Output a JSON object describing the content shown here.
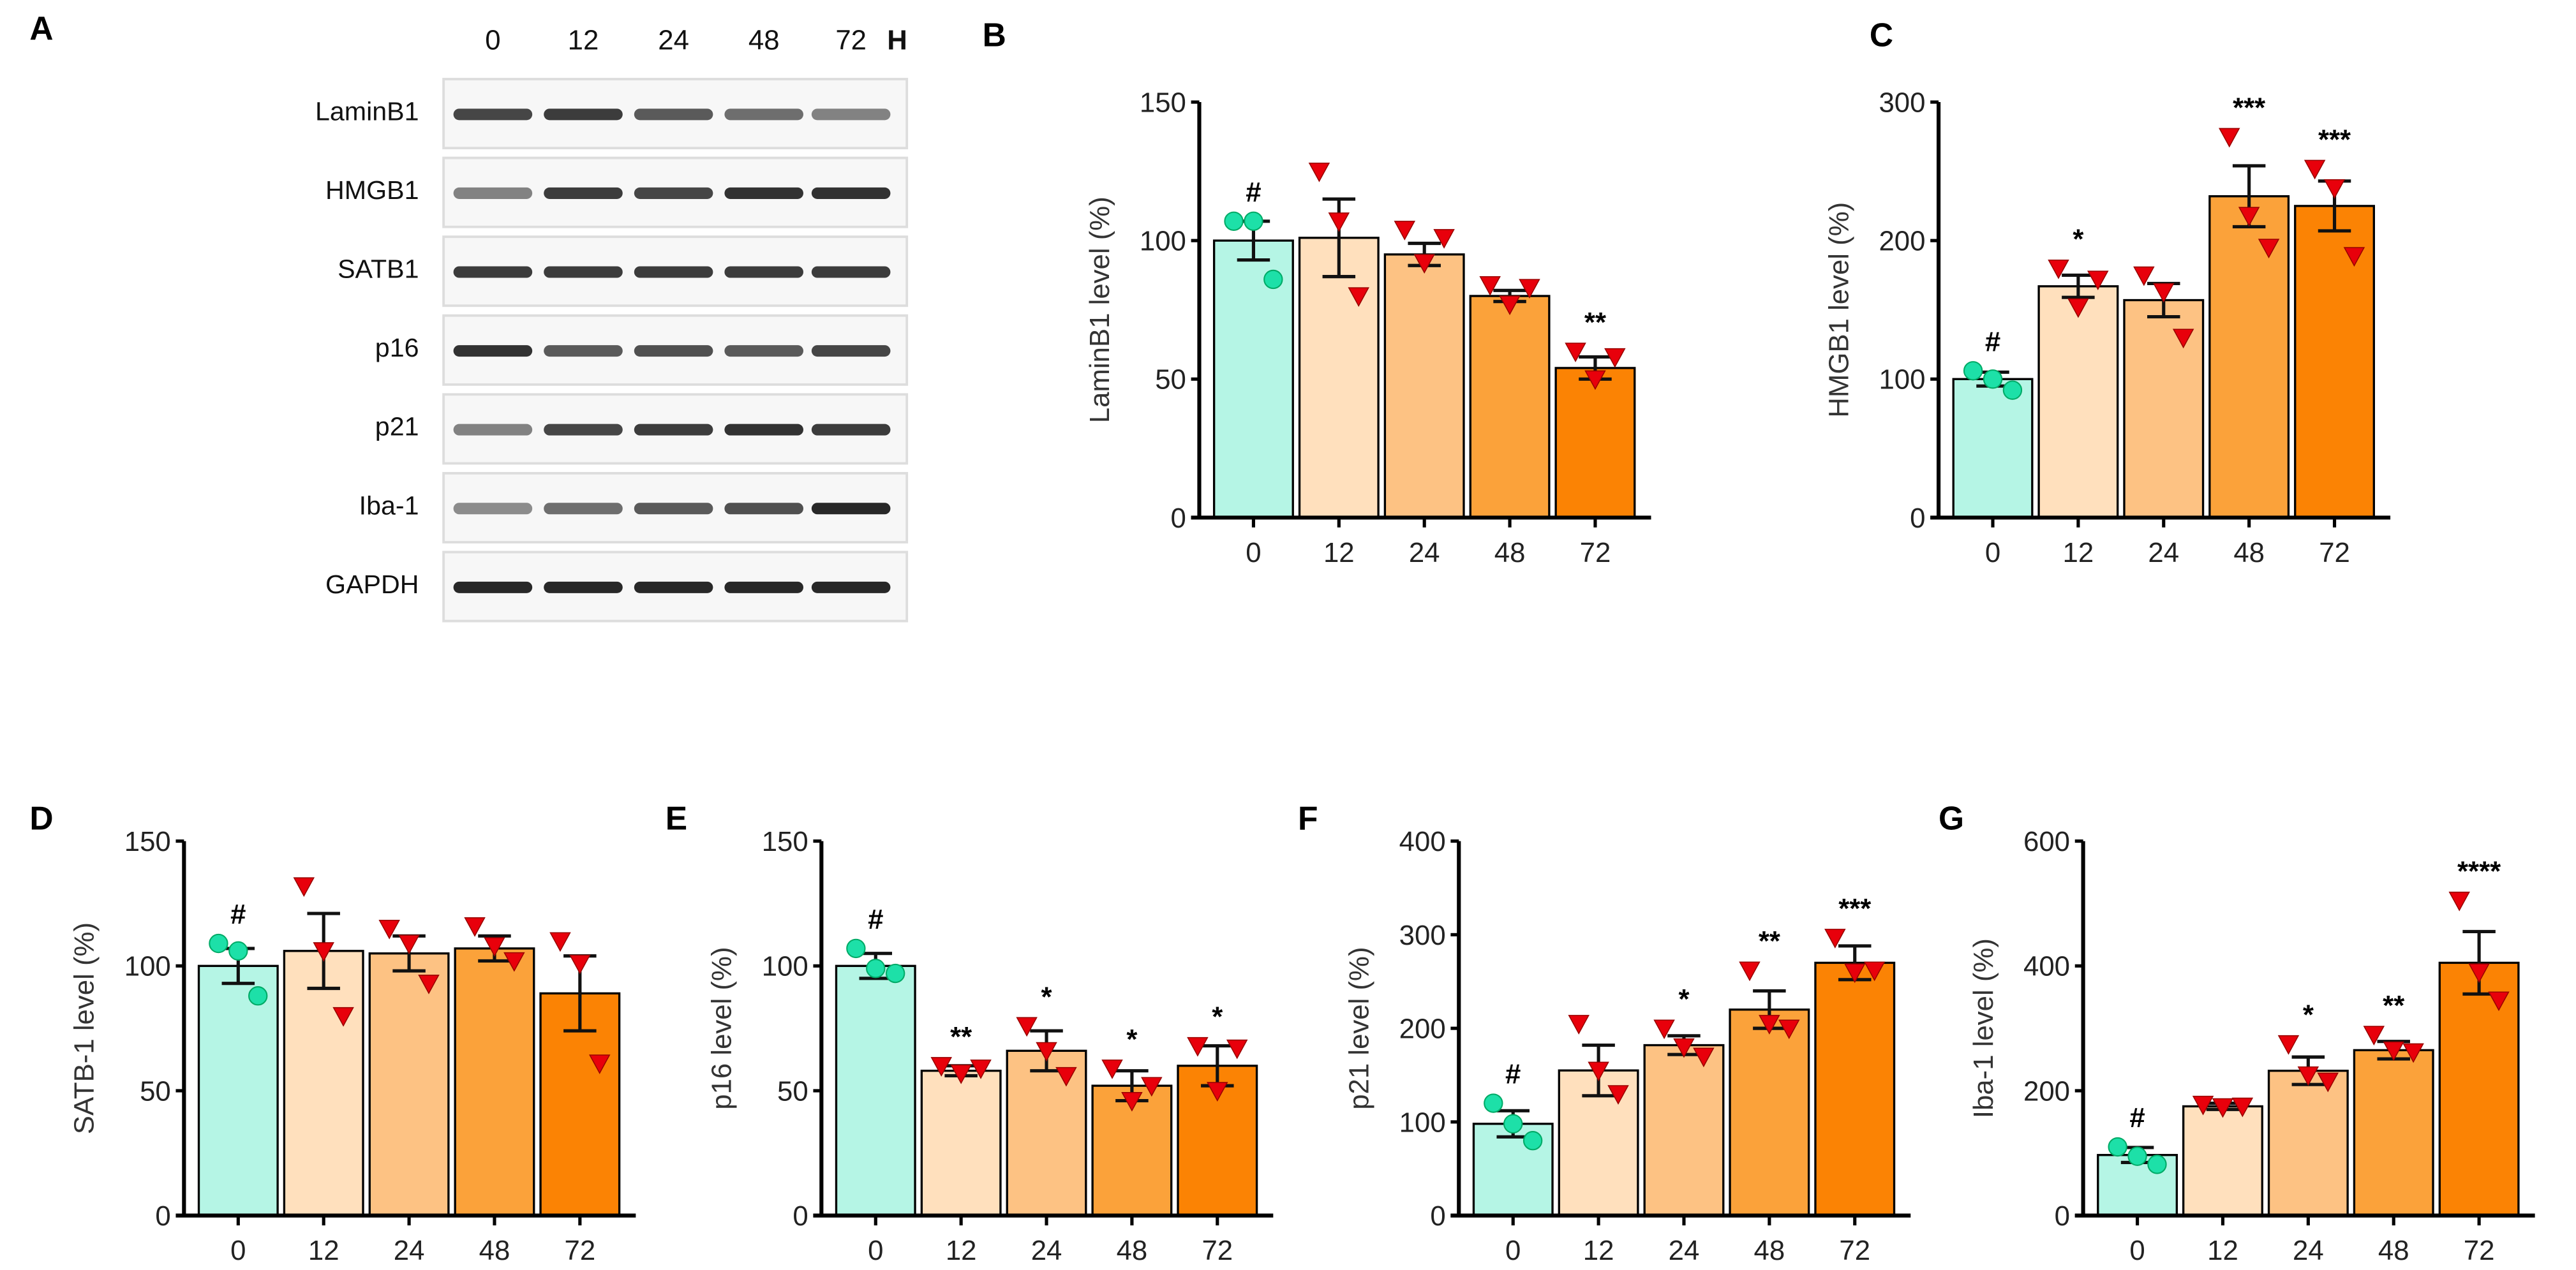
{
  "colors": {
    "bars": [
      "#b5f5e5",
      "#ffe0bd",
      "#fdc283",
      "#fba23a",
      "#fb8304"
    ],
    "control_point": "#1de0a8",
    "treated_point": "#e8000b",
    "axis": "#000000"
  },
  "blot": {
    "letter": "A",
    "lanes": [
      "0",
      "12",
      "24",
      "48",
      "72"
    ],
    "unit": "H",
    "rows": [
      {
        "label": "LaminB1",
        "band_intensity": [
          0.8,
          0.85,
          0.7,
          0.6,
          0.5
        ]
      },
      {
        "label": "HMGB1",
        "band_intensity": [
          0.5,
          0.85,
          0.8,
          0.9,
          0.9
        ]
      },
      {
        "label": "SATB1",
        "band_intensity": [
          0.85,
          0.85,
          0.85,
          0.85,
          0.85
        ]
      },
      {
        "label": "p16",
        "band_intensity": [
          0.9,
          0.7,
          0.75,
          0.7,
          0.8
        ]
      },
      {
        "label": "p21",
        "band_intensity": [
          0.5,
          0.8,
          0.85,
          0.9,
          0.85
        ]
      },
      {
        "label": "Iba-1",
        "band_intensity": [
          0.45,
          0.6,
          0.7,
          0.75,
          0.95
        ]
      },
      {
        "label": "GAPDH",
        "band_intensity": [
          0.95,
          0.95,
          0.95,
          0.95,
          0.95
        ]
      }
    ]
  },
  "chart_data": [
    {
      "letter": "B",
      "type": "bar",
      "categories": [
        "0",
        "12",
        "24",
        "48",
        "72"
      ],
      "ylabel": "LaminB1 level (%)",
      "ylim": [
        0,
        150
      ],
      "yticks": [
        "0",
        "50",
        "100",
        "150"
      ],
      "values": [
        100,
        101,
        95,
        80,
        54
      ],
      "sem": [
        7,
        14,
        4,
        2,
        4
      ],
      "points": [
        [
          107,
          107,
          86
        ],
        [
          125,
          107,
          80
        ],
        [
          104,
          92,
          101
        ],
        [
          84,
          77,
          83
        ],
        [
          60,
          50,
          58
        ]
      ],
      "significance": [
        "#",
        "",
        "",
        "",
        "**"
      ]
    },
    {
      "letter": "C",
      "type": "bar",
      "categories": [
        "0",
        "12",
        "24",
        "48",
        "72"
      ],
      "ylabel": "HMGB1 level (%)",
      "ylim": [
        0,
        300
      ],
      "yticks": [
        "0",
        "100",
        "200",
        "300"
      ],
      "values": [
        100,
        167,
        157,
        232,
        225
      ],
      "sem": [
        5,
        8,
        12,
        22,
        18
      ],
      "points": [
        [
          106,
          100,
          92
        ],
        [
          180,
          152,
          172
        ],
        [
          175,
          163,
          130
        ],
        [
          275,
          218,
          195
        ],
        [
          252,
          238,
          189
        ]
      ],
      "significance": [
        "#",
        "*",
        "",
        "***",
        "***"
      ]
    },
    {
      "letter": "D",
      "type": "bar",
      "categories": [
        "0",
        "12",
        "24",
        "48",
        "72"
      ],
      "ylabel": "SATB-1 level (%)",
      "ylim": [
        0,
        150
      ],
      "yticks": [
        "0",
        "50",
        "100",
        "150"
      ],
      "values": [
        100,
        106,
        105,
        107,
        89
      ],
      "sem": [
        7,
        15,
        7,
        5,
        15
      ],
      "points": [
        [
          109,
          106,
          88
        ],
        [
          132,
          106,
          80
        ],
        [
          115,
          109,
          93
        ],
        [
          116,
          108,
          102
        ],
        [
          110,
          101,
          61
        ]
      ],
      "significance": [
        "#",
        "",
        "",
        "",
        ""
      ]
    },
    {
      "letter": "E",
      "type": "bar",
      "categories": [
        "0",
        "12",
        "24",
        "48",
        "72"
      ],
      "ylabel": "p16 level (%)",
      "ylim": [
        0,
        150
      ],
      "yticks": [
        "0",
        "50",
        "100",
        "150"
      ],
      "values": [
        100,
        58,
        66,
        52,
        60
      ],
      "sem": [
        5,
        2,
        8,
        6,
        8
      ],
      "points": [
        [
          107,
          99,
          97
        ],
        [
          60,
          57,
          59
        ],
        [
          76,
          66,
          56
        ],
        [
          59,
          46,
          52
        ],
        [
          68,
          50,
          67
        ]
      ],
      "significance": [
        "#",
        "**",
        "*",
        "*",
        "*"
      ]
    },
    {
      "letter": "F",
      "type": "bar",
      "categories": [
        "0",
        "12",
        "24",
        "48",
        "72"
      ],
      "ylabel": "p21 level (%)",
      "ylim": [
        0,
        400
      ],
      "yticks": [
        "0",
        "100",
        "200",
        "300",
        "400"
      ],
      "values": [
        98,
        155,
        182,
        220,
        270
      ],
      "sem": [
        14,
        27,
        10,
        20,
        18
      ],
      "points": [
        [
          120,
          98,
          80
        ],
        [
          205,
          155,
          130
        ],
        [
          200,
          180,
          170
        ],
        [
          262,
          205,
          200
        ],
        [
          297,
          260,
          262
        ]
      ],
      "significance": [
        "#",
        "",
        "*",
        "**",
        "***"
      ]
    },
    {
      "letter": "G",
      "type": "bar",
      "categories": [
        "0",
        "12",
        "24",
        "48",
        "72"
      ],
      "ylabel": "Iba-1 level (%)",
      "ylim": [
        0,
        600
      ],
      "yticks": [
        "0",
        "200",
        "400",
        "600"
      ],
      "values": [
        97,
        175,
        232,
        265,
        405
      ],
      "sem": [
        12,
        5,
        22,
        14,
        50
      ],
      "points": [
        [
          110,
          95,
          82
        ],
        [
          178,
          174,
          175
        ],
        [
          275,
          225,
          215
        ],
        [
          290,
          265,
          262
        ],
        [
          505,
          390,
          345
        ]
      ],
      "significance": [
        "#",
        "",
        "*",
        "**",
        "****"
      ]
    }
  ]
}
